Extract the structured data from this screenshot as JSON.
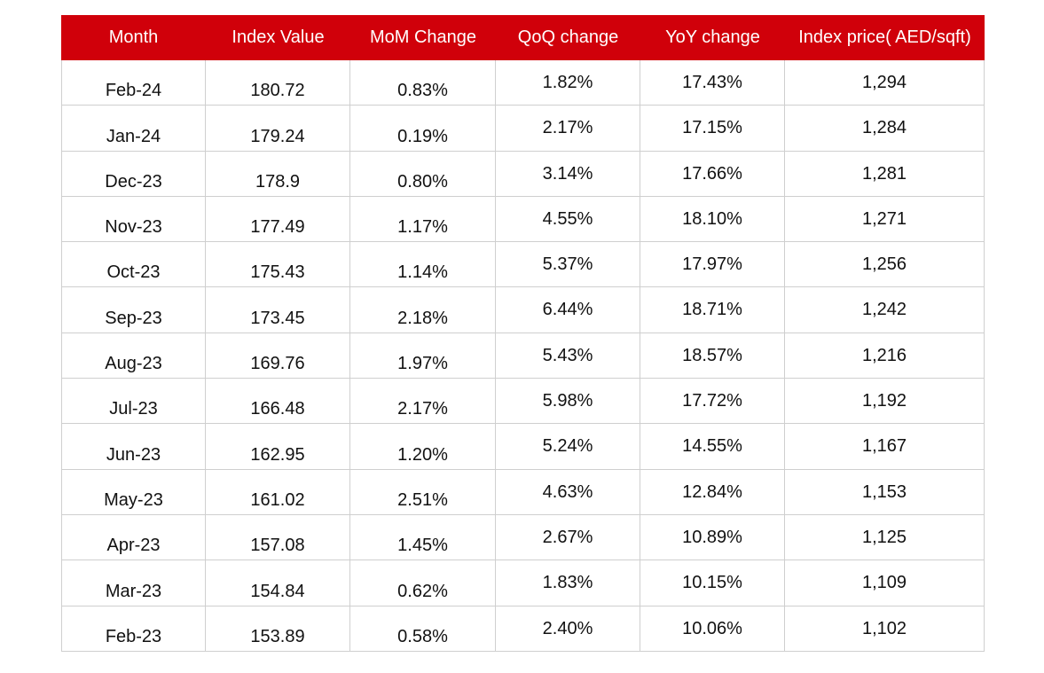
{
  "table": {
    "header": [
      "Month",
      "Index Value",
      "MoM Change",
      "QoQ change",
      "YoY change",
      "Index price( AED/sqft)"
    ],
    "rows": [
      [
        "Feb-24",
        "180.72",
        "0.83%",
        "1.82%",
        "17.43%",
        "1,294"
      ],
      [
        "Jan-24",
        "179.24",
        "0.19%",
        "2.17%",
        "17.15%",
        "1,284"
      ],
      [
        "Dec-23",
        "178.9",
        "0.80%",
        "3.14%",
        "17.66%",
        "1,281"
      ],
      [
        "Nov-23",
        "177.49",
        "1.17%",
        "4.55%",
        "18.10%",
        "1,271"
      ],
      [
        "Oct-23",
        "175.43",
        "1.14%",
        "5.37%",
        "17.97%",
        "1,256"
      ],
      [
        "Sep-23",
        "173.45",
        "2.18%",
        "6.44%",
        "18.71%",
        "1,242"
      ],
      [
        "Aug-23",
        "169.76",
        "1.97%",
        "5.43%",
        "18.57%",
        "1,216"
      ],
      [
        "Jul-23",
        "166.48",
        "2.17%",
        "5.98%",
        "17.72%",
        "1,192"
      ],
      [
        "Jun-23",
        "162.95",
        "1.20%",
        "5.24%",
        "14.55%",
        "1,167"
      ],
      [
        "May-23",
        "161.02",
        "2.51%",
        "4.63%",
        "12.84%",
        "1,153"
      ],
      [
        "Apr-23",
        "157.08",
        "1.45%",
        "2.67%",
        "10.89%",
        "1,125"
      ],
      [
        "Mar-23",
        "154.84",
        "0.62%",
        "1.83%",
        "10.15%",
        "1,109"
      ],
      [
        "Feb-23",
        "153.89",
        "0.58%",
        "2.40%",
        "10.06%",
        "1,102"
      ]
    ]
  }
}
